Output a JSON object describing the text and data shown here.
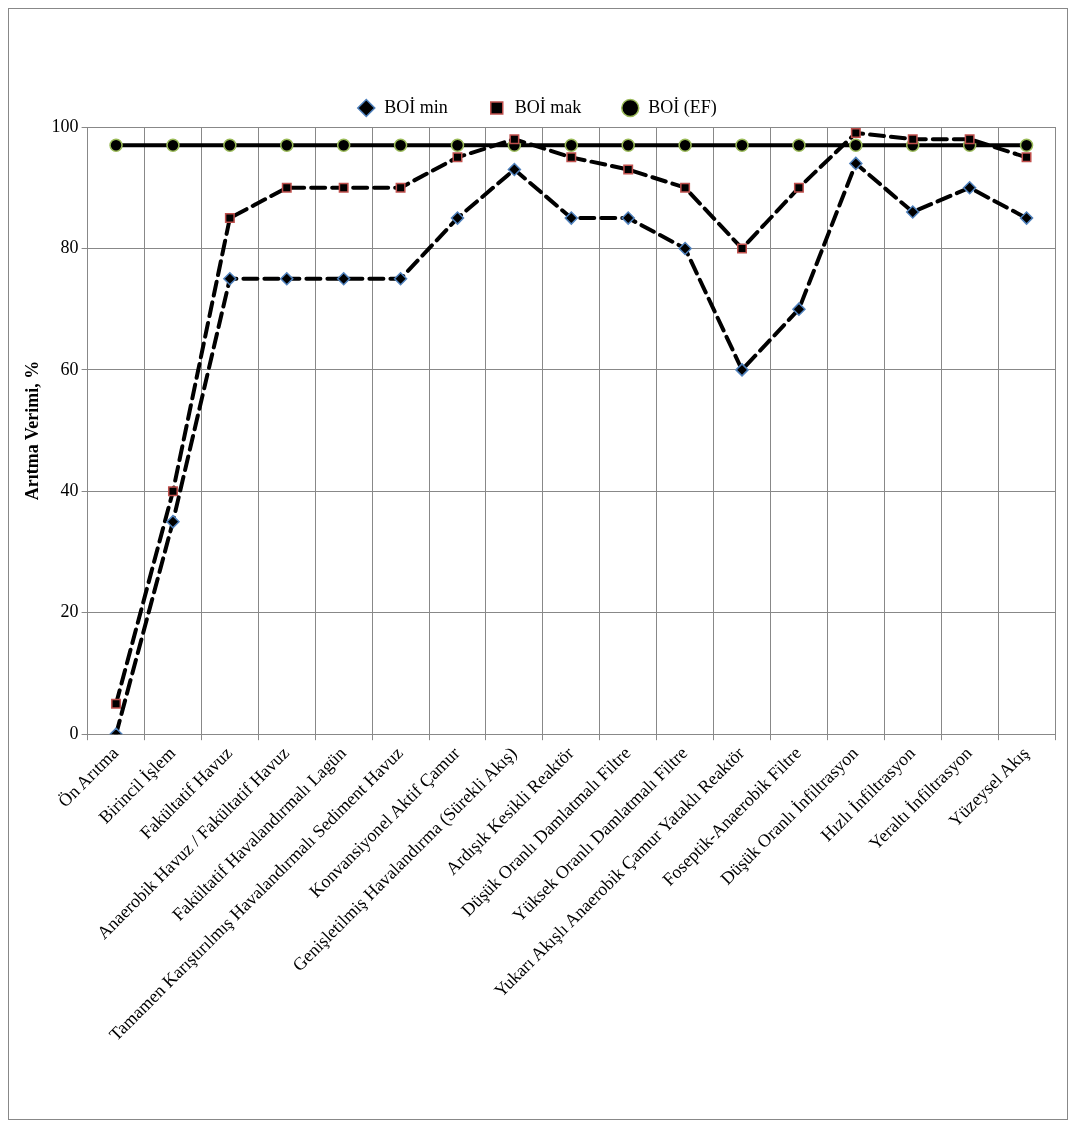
{
  "chart_data": {
    "type": "line",
    "ylabel": "Arıtma Verimi, %",
    "categories": [
      "Ön Arıtma",
      "Birincil İşlem",
      "Fakültatif Havuz",
      "Anaerobik Havuz / Fakültatif Havuz",
      "Fakültatif Havalandırmalı Lagün",
      "Tamamen Karıştırılmış Havalandırmalı Sediment Havuz",
      "Konvansiyonel Aktif Çamur",
      "Genişletilmiş Havalandırma (Sürekli Akış)",
      "Ardışık Kesikli Reaktör",
      "Düşük Oranlı Damlatmalı Filtre",
      "Yüksek Oranlı Damlatmalı Filtre",
      "Yukarı Akışlı Anaerobik Çamur Yataklı Reaktör",
      "Foseptik-Anaerobik Filtre",
      "Düşük Oranlı İnfiltrasyon",
      "Hızlı İnfiltrasyon",
      "Yeraltı İnfiltrasyon",
      "Yüzeysel Akış"
    ],
    "series": [
      {
        "name": "BOİ min",
        "color": "#000000",
        "marker": "diamond",
        "line_style": "dashed",
        "values": [
          0,
          35,
          75,
          75,
          75,
          75,
          85,
          93,
          85,
          85,
          80,
          60,
          70,
          94,
          86,
          90,
          85
        ]
      },
      {
        "name": "BOİ mak",
        "color": "#000000",
        "marker": "square",
        "line_style": "dashed",
        "values": [
          5,
          40,
          85,
          90,
          90,
          90,
          95,
          98,
          95,
          93,
          90,
          80,
          90,
          99,
          98,
          98,
          95
        ]
      },
      {
        "name": "BOİ (EF)",
        "color": "#000000",
        "marker": "circle",
        "line_style": "solid",
        "values": [
          97,
          97,
          97,
          97,
          97,
          97,
          97,
          97,
          97,
          97,
          97,
          97,
          97,
          97,
          97,
          97,
          97
        ]
      }
    ],
    "ylim": [
      0,
      100
    ],
    "yticks": [
      0,
      20,
      40,
      60,
      80,
      100
    ],
    "grid": true,
    "legend": "top"
  }
}
